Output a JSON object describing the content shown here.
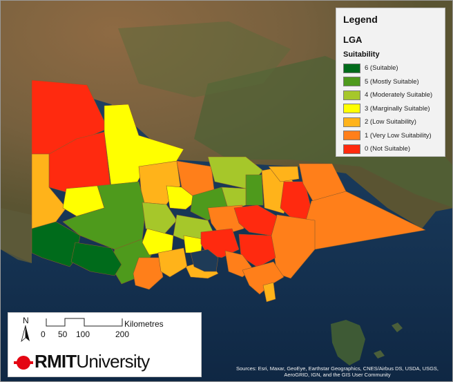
{
  "legend": {
    "title": "Legend",
    "layer": "LGA",
    "field": "Suitability",
    "items": [
      {
        "label": "6 (Suitable)",
        "color": "#006b1b"
      },
      {
        "label": "5 (Mostly Suitable)",
        "color": "#4e9a1c"
      },
      {
        "label": "4 (Moderately Suitable)",
        "color": "#a6c72a"
      },
      {
        "label": "3 (Marginally Suitable)",
        "color": "#ffff00"
      },
      {
        "label": "2 (Low Suitability)",
        "color": "#ffb31a"
      },
      {
        "label": "1 (Very Low Suitability)",
        "color": "#ff7f1a"
      },
      {
        "label": "0 (Not Suitable)",
        "color": "#ff2a0f"
      }
    ]
  },
  "scale_bar": {
    "north": "N",
    "unit": "Kilometres",
    "ticks": [
      "0",
      "50",
      "100",
      "200"
    ]
  },
  "logo": {
    "bold": "RMIT",
    "regular": "University",
    "color": "#e40613"
  },
  "attribution": "Sources: Esri, Maxar, GeoEye, Earthstar Geographics, CNES/Airbus DS, USDA, USGS, AeroGRID, IGN, and the GIS User Community",
  "colors": {
    "ocean": "#1f3f63",
    "land_dry": "#7a6444",
    "land_green": "#4a5f34"
  }
}
